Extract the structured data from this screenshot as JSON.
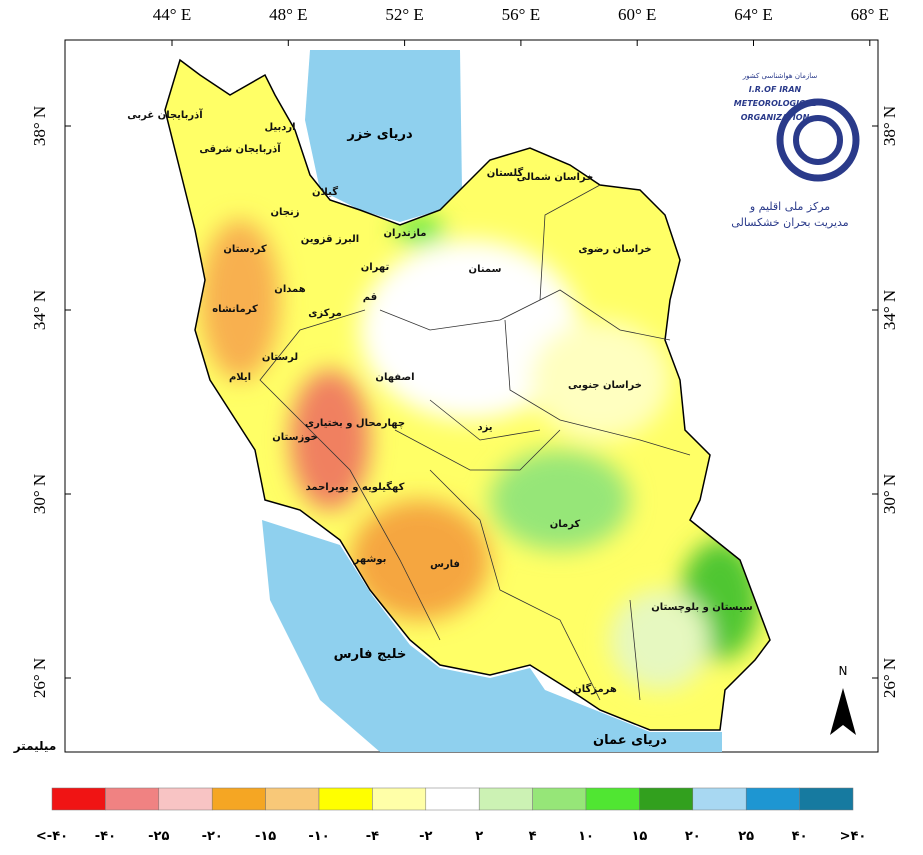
{
  "axes": {
    "lon": [
      "44° E",
      "48° E",
      "52° E",
      "56° E",
      "60° E",
      "64° E",
      "68° E"
    ],
    "lat": [
      "38° N",
      "34° N",
      "30° N",
      "26° N"
    ]
  },
  "seas": [
    "دریای خزر",
    "خلیج فارس",
    "دریای عمان"
  ],
  "provinces": [
    "آذربایجان غربی",
    "اردبیل",
    "آذربایجان شرقی",
    "گیلان",
    "زنجان",
    "مازندران",
    "گلستان",
    "خراسان شمالی",
    "خراسان رضوی",
    "سمنان",
    "البرز قزوین",
    "تهران",
    "کردستان",
    "همدان",
    "قم",
    "مرکزی",
    "کرمانشاه",
    "لرستان",
    "ایلام",
    "اصفهان",
    "خراسان جنوبی",
    "یزد",
    "چهارمحال و بختیاری",
    "خوزستان",
    "کهگیلویه و بویراحمد",
    "کرمان",
    "سیستان و بلوچستان",
    "بوشهر",
    "فارس",
    "هرمزگان"
  ],
  "logo": {
    "org": "سازمان هواشناسی کشور",
    "lines": [
      "I.R.OF IRAN",
      "METEOROLOGICAL",
      "ORGANIZATION"
    ],
    "center": [
      "مرکز ملی اقلیم و",
      "مدیریت بحران خشکسالی"
    ]
  },
  "north": "N",
  "unit": "میلیمتر",
  "legend": {
    "colors": [
      "#f01414",
      "#f08282",
      "#f8c4c4",
      "#f5a623",
      "#f8c878",
      "#ffff00",
      "#ffffa8",
      "#ffffff",
      "#ccf2b4",
      "#96e678",
      "#50e632",
      "#32a01e",
      "#a8d8f2",
      "#1e96d2",
      "#167aa0"
    ],
    "labels": [
      "<-۴۰",
      "-۴۰",
      "-۲۵",
      "-۲۰",
      "-۱۵",
      "-۱۰",
      "-۴",
      "-۲",
      "۲",
      "۴",
      "۱۰",
      "۱۵",
      "۲۰",
      "۲۵",
      "۴۰",
      ">۴۰"
    ]
  }
}
